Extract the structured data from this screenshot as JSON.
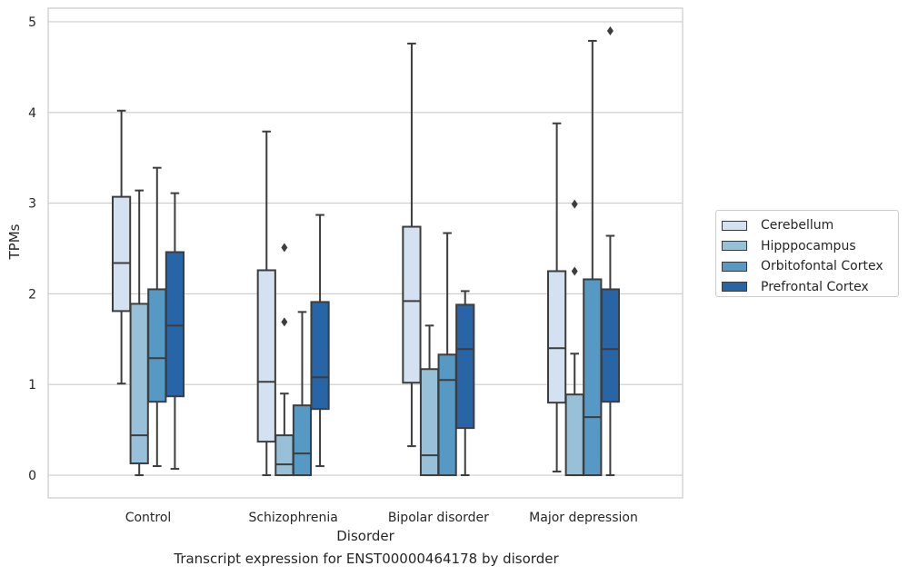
{
  "caption": "Transcript expression for ENST00000464178 by disorder",
  "chart_data": {
    "type": "boxplot",
    "xlabel": "Disorder",
    "ylabel": "TPMs",
    "ylim": [
      -0.25,
      5.15
    ],
    "yticks": [
      0,
      1,
      2,
      3,
      4,
      5
    ],
    "grid": "horizontal",
    "legend_position": "right",
    "categories": [
      "Control",
      "Schizophrenia",
      "Bipolar disorder",
      "Major depression"
    ],
    "series": [
      {
        "name": "Cerebellum",
        "color": "#d4e1f0",
        "boxes": [
          {
            "whislo": 1.01,
            "q1": 1.81,
            "med": 2.34,
            "q3": 3.07,
            "whishi": 4.02,
            "fliers": []
          },
          {
            "whislo": 0.0,
            "q1": 0.37,
            "med": 1.03,
            "q3": 2.26,
            "whishi": 3.79,
            "fliers": []
          },
          {
            "whislo": 0.32,
            "q1": 1.02,
            "med": 1.92,
            "q3": 2.74,
            "whishi": 4.76,
            "fliers": []
          },
          {
            "whislo": 0.04,
            "q1": 0.8,
            "med": 1.4,
            "q3": 2.25,
            "whishi": 3.88,
            "fliers": []
          }
        ]
      },
      {
        "name": "Hipppocampus",
        "color": "#98c1d9",
        "boxes": [
          {
            "whislo": 0.0,
            "q1": 0.13,
            "med": 0.44,
            "q3": 1.89,
            "whishi": 3.14,
            "fliers": []
          },
          {
            "whislo": 0.0,
            "q1": 0.0,
            "med": 0.12,
            "q3": 0.44,
            "whishi": 0.9,
            "fliers": [
              1.69,
              2.51
            ]
          },
          {
            "whislo": 0.0,
            "q1": 0.0,
            "med": 0.22,
            "q3": 1.17,
            "whishi": 1.65,
            "fliers": []
          },
          {
            "whislo": 0.0,
            "q1": 0.0,
            "med": 0.0,
            "q3": 0.89,
            "whishi": 1.34,
            "fliers": [
              2.25,
              2.99
            ]
          }
        ]
      },
      {
        "name": "Orbitofontal Cortex",
        "color": "#5699c4",
        "boxes": [
          {
            "whislo": 0.1,
            "q1": 0.81,
            "med": 1.29,
            "q3": 2.05,
            "whishi": 3.39,
            "fliers": []
          },
          {
            "whislo": 0.0,
            "q1": 0.0,
            "med": 0.24,
            "q3": 0.77,
            "whishi": 1.8,
            "fliers": []
          },
          {
            "whislo": 0.0,
            "q1": 0.0,
            "med": 1.05,
            "q3": 1.33,
            "whishi": 2.67,
            "fliers": []
          },
          {
            "whislo": 0.0,
            "q1": 0.0,
            "med": 0.64,
            "q3": 2.16,
            "whishi": 4.79,
            "fliers": []
          }
        ]
      },
      {
        "name": "Prefrontal Cortex",
        "color": "#2765a6",
        "boxes": [
          {
            "whislo": 0.07,
            "q1": 0.87,
            "med": 1.65,
            "q3": 2.46,
            "whishi": 3.11,
            "fliers": []
          },
          {
            "whislo": 0.1,
            "q1": 0.73,
            "med": 1.08,
            "q3": 1.91,
            "whishi": 2.87,
            "fliers": []
          },
          {
            "whislo": 0.0,
            "q1": 0.52,
            "med": 1.39,
            "q3": 1.88,
            "whishi": 2.03,
            "fliers": []
          },
          {
            "whislo": 0.0,
            "q1": 0.81,
            "med": 1.39,
            "q3": 2.05,
            "whishi": 2.64,
            "fliers": [
              4.9
            ]
          }
        ]
      }
    ]
  }
}
